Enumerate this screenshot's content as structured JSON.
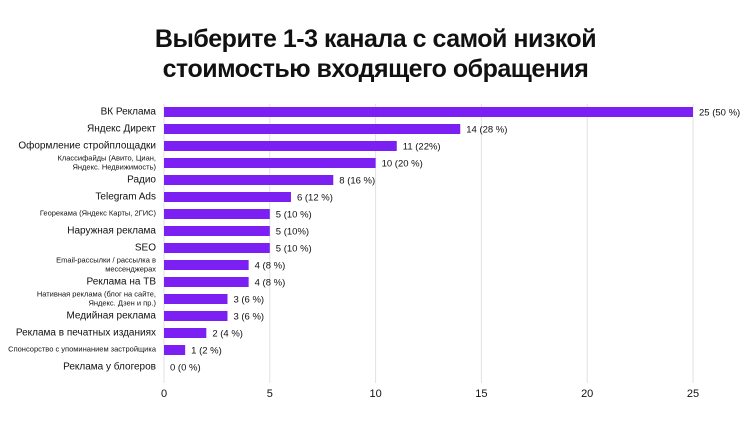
{
  "chart_data": {
    "type": "barh",
    "title": "Выберите 1-3 канала с самой низкой стоимостью входящего обращения",
    "categories": [
      "ВК Реклама",
      "Яндекс Директ",
      "Оформление стройплощадки",
      "Классифайды (Авито, Циан, Яндекс. Недвижимость)",
      "Радио",
      "Telegram Ads",
      "Георекама (Яндекс Карты, 2ГИС)",
      "Наружная реклама",
      "SEO",
      "Email-рассылки / рассылка в мессенджерах",
      "Реклама на ТВ",
      "Нативная реклама (блог на сайте, Яндекс. Дзен и пр.)",
      "Медийная реклама",
      "Реклама в печатных изданиях",
      "Спонсорство с упоминанием застройщика",
      "Реклама у блогеров"
    ],
    "values": [
      25,
      14,
      11,
      10,
      8,
      6,
      5,
      5,
      5,
      4,
      4,
      3,
      3,
      2,
      1,
      0
    ],
    "value_labels": [
      "25 (50 %)",
      "14 (28 %)",
      "11 (22%)",
      "10 (20 %)",
      "8 (16 %)",
      "6 (12 %)",
      "5 (10 %)",
      "5 (10%)",
      "5 (10 %)",
      "4 (8 %)",
      "4 (8 %)",
      "3 (6 %)",
      "3 (6 %)",
      "2 (4 %)",
      "1 (2 %)",
      "0 (0 %)"
    ],
    "color": "#7b1ff2",
    "xlim": [
      0,
      25
    ],
    "xticks": [
      0,
      5,
      10,
      15,
      20,
      25
    ],
    "grid": true
  }
}
